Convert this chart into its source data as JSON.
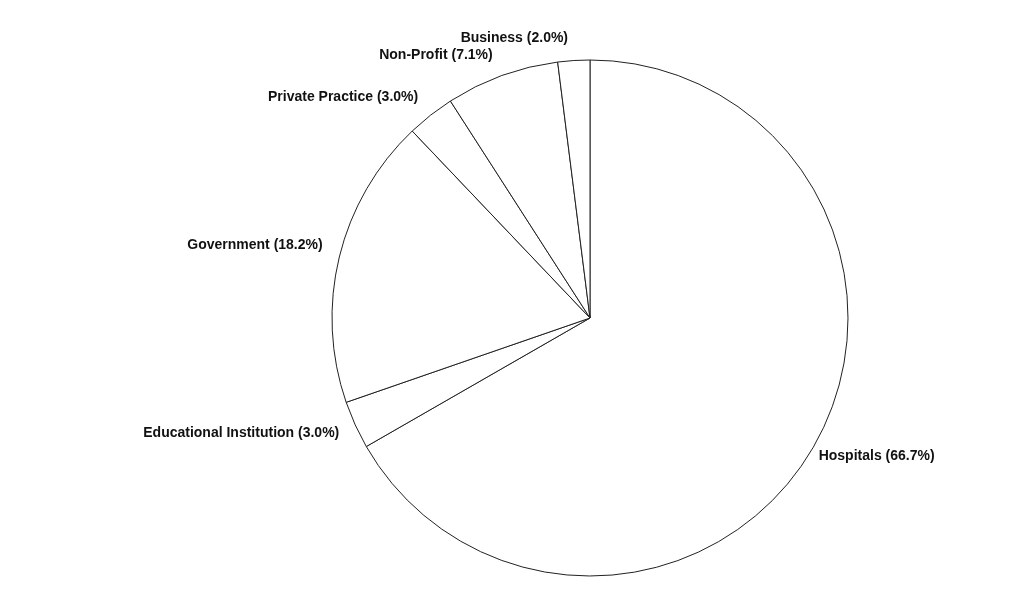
{
  "chart_data": {
    "type": "pie",
    "categories": [
      "Hospitals",
      "Educational Institution",
      "Government",
      "Private Practice",
      "Non-Profit",
      "Business"
    ],
    "values": [
      66.7,
      3.0,
      18.2,
      3.0,
      7.1,
      2.0
    ],
    "value_labels": [
      "(66.7%)",
      "(3.0%)",
      "(18.2%)",
      "(3.0%)",
      "(7.1%)",
      "(2.0%)"
    ],
    "colors": [
      "#ffffff",
      "#ffffff",
      "#ffffff",
      "#ffffff",
      "#ffffff",
      "#ffffff"
    ],
    "legend": false
  }
}
